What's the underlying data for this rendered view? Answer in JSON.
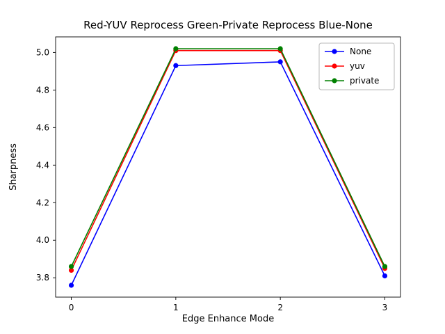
{
  "figure": {
    "title": "Red-YUV Reprocess  Green-Private Reprocess  Blue-None",
    "xlabel": "Edge Enhance Mode",
    "ylabel": "Sharpness"
  },
  "chart_data": {
    "type": "line",
    "title": "Red-YUV Reprocess  Green-Private Reprocess  Blue-None",
    "xlabel": "Edge Enhance Mode",
    "ylabel": "Sharpness",
    "x": [
      0,
      1,
      2,
      3
    ],
    "series": [
      {
        "name": "None",
        "color": "#0000ff",
        "values": [
          3.76,
          4.93,
          4.95,
          3.81
        ]
      },
      {
        "name": "yuv",
        "color": "#ff0000",
        "values": [
          3.84,
          5.01,
          5.01,
          3.85
        ]
      },
      {
        "name": "private",
        "color": "#008000",
        "values": [
          3.86,
          5.02,
          5.02,
          3.86
        ]
      }
    ],
    "xticks": [
      0,
      1,
      2,
      3
    ],
    "yticks": [
      3.8,
      4.0,
      4.2,
      4.4,
      4.6,
      4.8,
      5.0
    ],
    "xlim": [
      -0.15,
      3.15
    ],
    "ylim": [
      3.697,
      5.083
    ],
    "marker": "circle",
    "grid": false,
    "legend": {
      "position": "upper right",
      "entries": [
        "None",
        "yuv",
        "private"
      ]
    }
  }
}
